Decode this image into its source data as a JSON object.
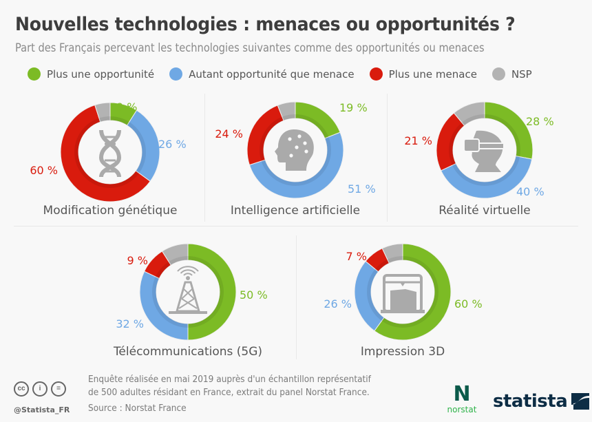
{
  "header": {
    "title": "Nouvelles technologies : menaces ou opportunités ?",
    "subtitle": "Part des Français percevant les technologies suivantes comme des opportunités ou menaces"
  },
  "legend": [
    {
      "label": "Plus une opportunité",
      "color": "#7cbb25"
    },
    {
      "label": "Autant opportunité que menace",
      "color": "#6fa8e4"
    },
    {
      "label": "Plus une menace",
      "color": "#d91b0d"
    },
    {
      "label": "NSP",
      "color": "#b3b3b3"
    }
  ],
  "chart_data": {
    "type": "pie",
    "variant": "donut",
    "title": "Nouvelles technologies : menaces ou opportunités ?",
    "subtitle": "Part des Français percevant les technologies suivantes comme des opportunités ou menaces",
    "categories": [
      "Plus une opportunité",
      "Autant opportunité que menace",
      "Plus une menace",
      "NSP"
    ],
    "colors": [
      "#7cbb25",
      "#6fa8e4",
      "#d91b0d",
      "#b3b3b3"
    ],
    "unit": "%",
    "legend_position": "top",
    "charts": [
      {
        "name": "Modification génétique",
        "icon": "dna-icon",
        "values": [
          9,
          26,
          60,
          5
        ],
        "labels": [
          "9 %",
          "26 %",
          "60 %",
          ""
        ]
      },
      {
        "name": "Intelligence artificielle",
        "icon": "ai-head-icon",
        "values": [
          19,
          51,
          24,
          6
        ],
        "labels": [
          "19 %",
          "51 %",
          "24 %",
          ""
        ]
      },
      {
        "name": "Réalité virtuelle",
        "icon": "vr-headset-icon",
        "values": [
          28,
          40,
          21,
          11
        ],
        "labels": [
          "28 %",
          "40 %",
          "21 %",
          ""
        ]
      },
      {
        "name": "Télécommunications (5G)",
        "icon": "antenna-tower-icon",
        "values": [
          50,
          32,
          9,
          9
        ],
        "labels": [
          "50 %",
          "32 %",
          "9 %",
          ""
        ]
      },
      {
        "name": "Impression 3D",
        "icon": "3d-printer-icon",
        "values": [
          60,
          26,
          7,
          7
        ],
        "labels": [
          "60 %",
          "26 %",
          "7 %",
          ""
        ]
      }
    ]
  },
  "footer": {
    "note_line1": "Enquête réalisée en mai 2019 auprès d'un échantillon représentatif",
    "note_line2": "de 500 adultes résidant en France, extrait du panel Norstat France.",
    "source": "Source : Norstat France",
    "handle": "@Statista_FR",
    "cc_labels": [
      "cc",
      "i",
      "="
    ],
    "norstat_letter": "N",
    "norstat_word": "norstat",
    "statista_word": "statista"
  }
}
